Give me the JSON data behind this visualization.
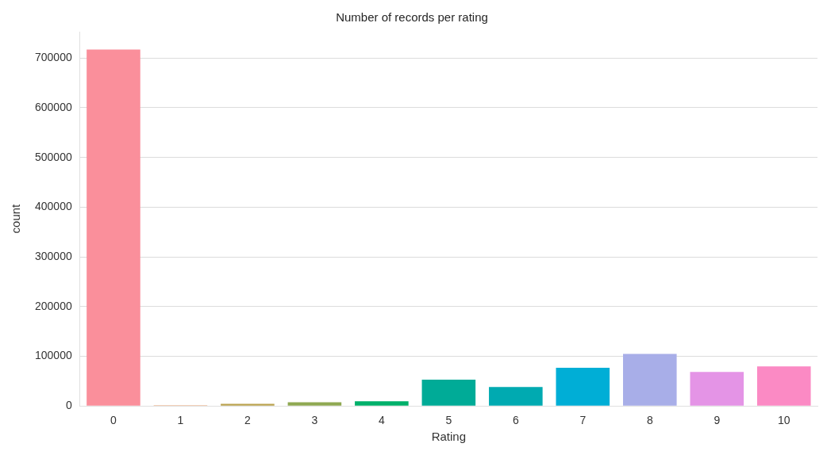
{
  "chart_data": {
    "type": "bar",
    "title": "Number of records per rating",
    "xlabel": "Rating",
    "ylabel": "count",
    "categories": [
      "0",
      "1",
      "2",
      "3",
      "4",
      "5",
      "6",
      "7",
      "8",
      "9",
      "10"
    ],
    "values": [
      717000,
      1500,
      4500,
      7500,
      9500,
      53000,
      38000,
      77000,
      104800,
      68500,
      79800
    ],
    "colors": [
      "#fa8f9b",
      "#e8a070",
      "#b9a24e",
      "#8fa852",
      "#00b06a",
      "#00ab97",
      "#00aab1",
      "#00aed6",
      "#a8aee8",
      "#e494e6",
      "#fb8ac4"
    ],
    "ylim": [
      0,
      753000
    ],
    "yticks": [
      0,
      100000,
      200000,
      300000,
      400000,
      500000,
      600000,
      700000
    ],
    "grid": "y",
    "legend": false
  }
}
